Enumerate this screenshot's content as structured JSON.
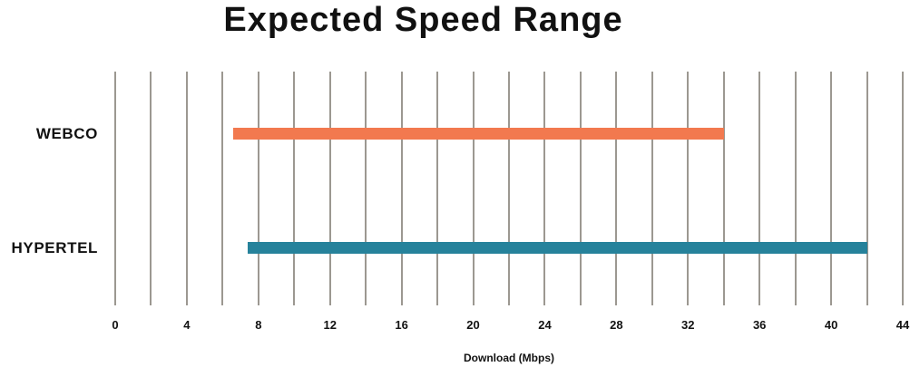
{
  "chart_data": {
    "type": "bar",
    "variant": "horizontal-range-bars",
    "title": "Expected Speed Range",
    "xlabel": "Download (Mbps)",
    "categories": [
      "WEBCO",
      "HYPERTEL"
    ],
    "series": [
      {
        "name": "WEBCO",
        "range_min_mbps": 6.6,
        "range_max_mbps": 34,
        "color": "#F2794F"
      },
      {
        "name": "HYPERTEL",
        "range_min_mbps": 7.4,
        "range_max_mbps": 42,
        "color": "#26829B"
      }
    ],
    "xlim": [
      0,
      44
    ],
    "tick_interval": 4,
    "tick_labels": [
      "0",
      "4",
      "8",
      "12",
      "16",
      "20",
      "24",
      "28",
      "32",
      "36",
      "40",
      "44"
    ],
    "gridline_interval": 2,
    "grid": true,
    "legend": false,
    "colors": {
      "gridline": "#9C9891",
      "text": "#111111",
      "background": "#FFFFFF"
    }
  }
}
